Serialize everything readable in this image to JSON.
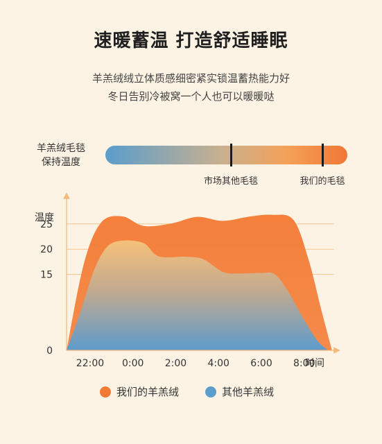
{
  "title": "速暖蓄温 打造舒适睡眠",
  "subtitle_lines": [
    "羊羔绒绒立体质感细密紧实锁温蓄热能力好",
    "冬日告别冷被窝一个人也可以暖暖哒"
  ],
  "warmth_bar": {
    "label_lines": [
      "羊羔绒毛毯",
      "保持温度"
    ],
    "markers": [
      {
        "label": "市场其他毛毯"
      },
      {
        "label": "我们的毛毯"
      }
    ]
  },
  "colors": {
    "ours": "#f07a36",
    "others": "#5a9dcb",
    "background": "#fcf3e4"
  },
  "chart_data": {
    "type": "area",
    "ylabel": "温度",
    "xlabel": "时间",
    "y_ticks": [
      0,
      15,
      20,
      25
    ],
    "x_ticks": [
      "22:00",
      "0:00",
      "2:00",
      "4:00",
      "6:00",
      "8:00"
    ],
    "ylim": [
      0,
      29.5
    ],
    "xlim": [
      -1.1,
      11.4
    ],
    "grid": true,
    "legend_position": "bottom",
    "series": [
      {
        "name": "我们的羊羔绒",
        "x": [
          -1.1,
          -0.3,
          0.5,
          1.5,
          2.5,
          3.8,
          5,
          6.2,
          7.5,
          8.5,
          9.5,
          10.2,
          10.8,
          11.3
        ],
        "y": [
          0,
          17,
          25.2,
          26.5,
          24.6,
          25.1,
          26.4,
          25.6,
          26.5,
          26.8,
          25.8,
          18,
          8,
          0
        ]
      },
      {
        "name": "其他羊羔绒",
        "x": [
          -1.1,
          -0.5,
          0.2,
          0.8,
          1.5,
          2.5,
          3.2,
          4.5,
          5.3,
          6.2,
          7.0,
          8.0,
          8.6,
          9.2,
          10.0,
          10.6,
          11.1
        ],
        "y": [
          0,
          7,
          16,
          20.5,
          21.7,
          21.2,
          18.6,
          18.5,
          18.0,
          15.5,
          15.2,
          15.3,
          15.1,
          12,
          6,
          2,
          0
        ]
      }
    ]
  }
}
